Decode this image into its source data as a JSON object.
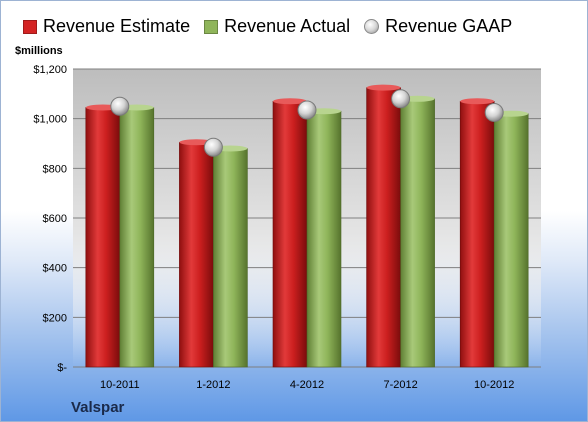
{
  "legend": {
    "estimate": "Revenue Estimate",
    "actual": "Revenue Actual",
    "gaap": "Revenue GAAP"
  },
  "unit_label": "$millions",
  "brand": "Valspar",
  "colors": {
    "estimate": "#d42424",
    "actual": "#8fb55a",
    "gaap": "#c9c9c9"
  },
  "chart_data": {
    "type": "bar",
    "categories": [
      "10-2011",
      "1-2012",
      "4-2012",
      "7-2012",
      "10-2012"
    ],
    "series": [
      {
        "name": "Revenue Estimate",
        "values": [
          1045,
          905,
          1070,
          1125,
          1070
        ]
      },
      {
        "name": "Revenue Actual",
        "values": [
          1045,
          880,
          1030,
          1080,
          1020
        ]
      },
      {
        "name": "Revenue GAAP",
        "values": [
          1050,
          885,
          1035,
          1080,
          1025
        ]
      }
    ],
    "ylim": [
      0,
      1200
    ],
    "yticks": [
      0,
      200,
      400,
      600,
      800,
      1000,
      1200
    ],
    "ytick_labels": [
      "$-",
      "$200",
      "$400",
      "$600",
      "$800",
      "$1,000",
      "$1,200"
    ],
    "ylabel": "$millions",
    "grid": true,
    "legend_position": "top"
  }
}
